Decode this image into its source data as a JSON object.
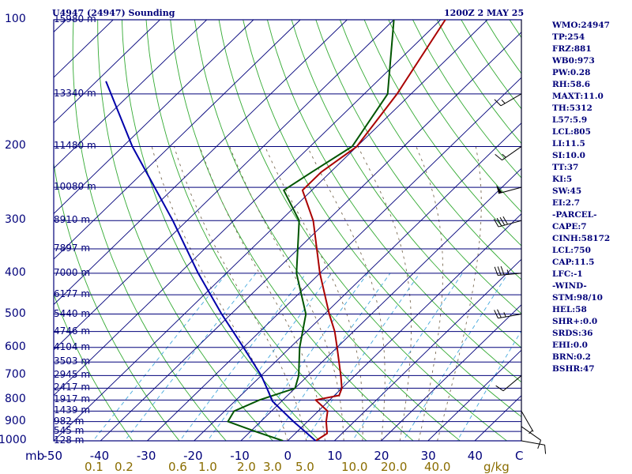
{
  "header": {
    "station": "U4947 (24947) Sounding",
    "time": "1200Z  2 MAY 25"
  },
  "indices": [
    "WMO:24947",
    "TP:254",
    "FRZ:881",
    "WB0:973",
    "PW:0.28",
    "RH:58.6",
    "MAXT:11.0",
    "TH:5312",
    "L57:5.9",
    "LCL:805",
    "LI:11.5",
    "SI:10.0",
    "TT:37",
    "KI:5",
    "SW:45",
    "EI:2.7",
    "-PARCEL-",
    "CAPE:7",
    "CINH:58172",
    "LCL:750",
    "CAP:11.5",
    "LFC:-1",
    "-WIND-",
    "STM:98/10",
    "HEL:58",
    "SHR+:0.0",
    "SRDS:36",
    "EHI:0.0",
    "BRN:0.2",
    "BSHR:47"
  ],
  "colors": {
    "background": "#ffffff",
    "frame": "#00007a",
    "isobar": "#00007a",
    "isotherm": "#00007a",
    "dry_adiabat": "#33aa33",
    "mixing_ratio": "#44a8dd",
    "moist_adiabat": "#7a6a52",
    "temperature": "#aa0000",
    "dewpoint": "#005500",
    "parcel": "#0000aa",
    "text": "#00007a",
    "mixing_label": "#8a6d00"
  },
  "chart_data": {
    "type": "line",
    "title": "U4947 (24947) Sounding",
    "pressure_unit": "mb",
    "temperature_unit": "C",
    "mixing_ratio_unit": "g/kg",
    "pressure_range": [
      1000,
      100
    ],
    "temperature_range": [
      -50,
      40
    ],
    "y_axis_scale": "log-pressure",
    "skewed_isotherms": true,
    "grid": true,
    "pressure_levels": [
      100,
      200,
      300,
      400,
      500,
      600,
      700,
      800,
      900,
      1000
    ],
    "pressure_ticks": [
      {
        "p": 100,
        "label": "100"
      },
      {
        "p": 200,
        "label": "200"
      },
      {
        "p": 300,
        "label": "300"
      },
      {
        "p": 400,
        "label": "400"
      },
      {
        "p": 500,
        "label": "500"
      },
      {
        "p": 600,
        "label": "600"
      },
      {
        "p": 700,
        "label": "700"
      },
      {
        "p": 800,
        "label": "800"
      },
      {
        "p": 900,
        "label": "900"
      },
      {
        "p": 1000,
        "label": "1000"
      }
    ],
    "pressure_axis_label": "mb",
    "height_labels": [
      {
        "p": 100,
        "label": "15980 m"
      },
      {
        "p": 150,
        "label": "13340 m"
      },
      {
        "p": 200,
        "label": "11480 m"
      },
      {
        "p": 250,
        "label": "10080 m"
      },
      {
        "p": 300,
        "label": "8910 m"
      },
      {
        "p": 350,
        "label": "7897 m"
      },
      {
        "p": 400,
        "label": "7000 m"
      },
      {
        "p": 450,
        "label": "6177 m"
      },
      {
        "p": 500,
        "label": "5440 m"
      },
      {
        "p": 550,
        "label": "4746 m"
      },
      {
        "p": 600,
        "label": "4104 m"
      },
      {
        "p": 650,
        "label": "3503 m"
      },
      {
        "p": 700,
        "label": "2945 m"
      },
      {
        "p": 750,
        "label": "2417 m"
      },
      {
        "p": 800,
        "label": "1917 m"
      },
      {
        "p": 850,
        "label": "1439 m"
      },
      {
        "p": 900,
        "label": "982 m"
      },
      {
        "p": 950,
        "label": "545 m"
      },
      {
        "p": 1000,
        "label": "128 m"
      }
    ],
    "temperature_ticks": [
      "-50",
      "-40",
      "-30",
      "-20",
      "-10",
      "0",
      "10",
      "20",
      "30",
      "40"
    ],
    "temperature_axis_label": "C",
    "mixing_ratio_ticks": [
      "0.1",
      "0.2",
      "0.6",
      "1.0",
      "2.0",
      "3.0",
      "5.0",
      "10.0",
      "20.0",
      "40.0"
    ],
    "mixing_ratio_values": [
      0.1,
      0.2,
      0.6,
      1.0,
      2.0,
      3.0,
      5.0,
      10.0,
      20.0,
      40.0
    ],
    "mixing_ratio_axis_label": "g/kg",
    "dry_adiabats_theta_k": [
      240,
      250,
      260,
      270,
      280,
      290,
      300,
      310,
      320,
      330,
      340,
      350,
      360,
      370,
      380,
      390,
      400,
      410,
      420,
      430,
      440,
      450
    ],
    "moist_adiabats_start_c": [
      0,
      4,
      8,
      12,
      16,
      20,
      24,
      28,
      32
    ],
    "series": [
      {
        "name": "Temperature",
        "key": "temperature",
        "points": [
          {
            "p": 1000,
            "t": 6.0
          },
          {
            "p": 960,
            "t": 6.8
          },
          {
            "p": 900,
            "t": 4.0
          },
          {
            "p": 850,
            "t": 2.0
          },
          {
            "p": 800,
            "t": -3.0
          },
          {
            "p": 780,
            "t": 1.0
          },
          {
            "p": 750,
            "t": 0.0
          },
          {
            "p": 700,
            "t": -3.0
          },
          {
            "p": 600,
            "t": -10.0
          },
          {
            "p": 550,
            "t": -14.0
          },
          {
            "p": 500,
            "t": -19.0
          },
          {
            "p": 400,
            "t": -30.0
          },
          {
            "p": 300,
            "t": -43.0
          },
          {
            "p": 254,
            "t": -52.0
          },
          {
            "p": 230,
            "t": -52.0
          },
          {
            "p": 200,
            "t": -50.0
          },
          {
            "p": 150,
            "t": -53.0
          },
          {
            "p": 100,
            "t": -59.0
          }
        ]
      },
      {
        "name": "Dewpoint",
        "key": "dewpoint",
        "points": [
          {
            "p": 1000,
            "t": -1.0
          },
          {
            "p": 950,
            "t": -9.0
          },
          {
            "p": 900,
            "t": -17.0
          },
          {
            "p": 850,
            "t": -18.0
          },
          {
            "p": 800,
            "t": -15.0
          },
          {
            "p": 750,
            "t": -10.0
          },
          {
            "p": 700,
            "t": -12.0
          },
          {
            "p": 600,
            "t": -18.0
          },
          {
            "p": 500,
            "t": -24.0
          },
          {
            "p": 400,
            "t": -35.0
          },
          {
            "p": 300,
            "t": -46.0
          },
          {
            "p": 254,
            "t": -56.0
          },
          {
            "p": 230,
            "t": -54.0
          },
          {
            "p": 200,
            "t": -51.0
          },
          {
            "p": 150,
            "t": -55.0
          },
          {
            "p": 100,
            "t": -70.0
          }
        ]
      },
      {
        "name": "Parcel",
        "key": "parcel",
        "points": [
          {
            "p": 1000,
            "t": 6.0
          },
          {
            "p": 900,
            "t": -3.0
          },
          {
            "p": 805,
            "t": -12.0
          },
          {
            "p": 750,
            "t": -16.0
          },
          {
            "p": 700,
            "t": -20.0
          },
          {
            "p": 600,
            "t": -30.0
          },
          {
            "p": 500,
            "t": -42.0
          },
          {
            "p": 400,
            "t": -56.0
          },
          {
            "p": 300,
            "t": -73.0
          },
          {
            "p": 200,
            "t": -98.0
          },
          {
            "p": 140,
            "t": -118.0
          }
        ]
      }
    ],
    "wind_barbs": [
      {
        "p": 1000,
        "dir": 100,
        "spd": 10
      },
      {
        "p": 925,
        "dir": 125,
        "spd": 10
      },
      {
        "p": 850,
        "dir": 150,
        "spd": 5
      },
      {
        "p": 700,
        "dir": 230,
        "spd": 10
      },
      {
        "p": 500,
        "dir": 260,
        "spd": 25
      },
      {
        "p": 400,
        "dir": 265,
        "spd": 35
      },
      {
        "p": 300,
        "dir": 255,
        "spd": 40
      },
      {
        "p": 250,
        "dir": 255,
        "spd": 50
      },
      {
        "p": 200,
        "dir": 235,
        "spd": 15
      },
      {
        "p": 150,
        "dir": 240,
        "spd": 15
      }
    ]
  }
}
